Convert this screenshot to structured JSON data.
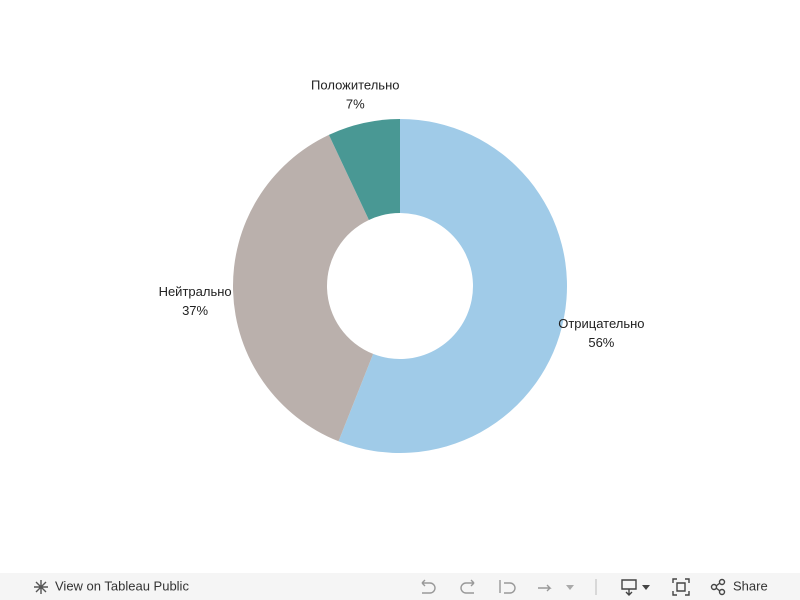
{
  "chart_data": {
    "type": "donut",
    "categories": [
      "Отрицательно",
      "Нейтрально",
      "Положительно"
    ],
    "values": [
      56,
      37,
      7
    ],
    "value_labels": [
      "56%",
      "37%",
      "7%"
    ],
    "colors": [
      "#a0cbe8",
      "#bab0ac",
      "#499894"
    ]
  },
  "toolbar": {
    "view_link": "View on Tableau Public",
    "share": "Share"
  }
}
